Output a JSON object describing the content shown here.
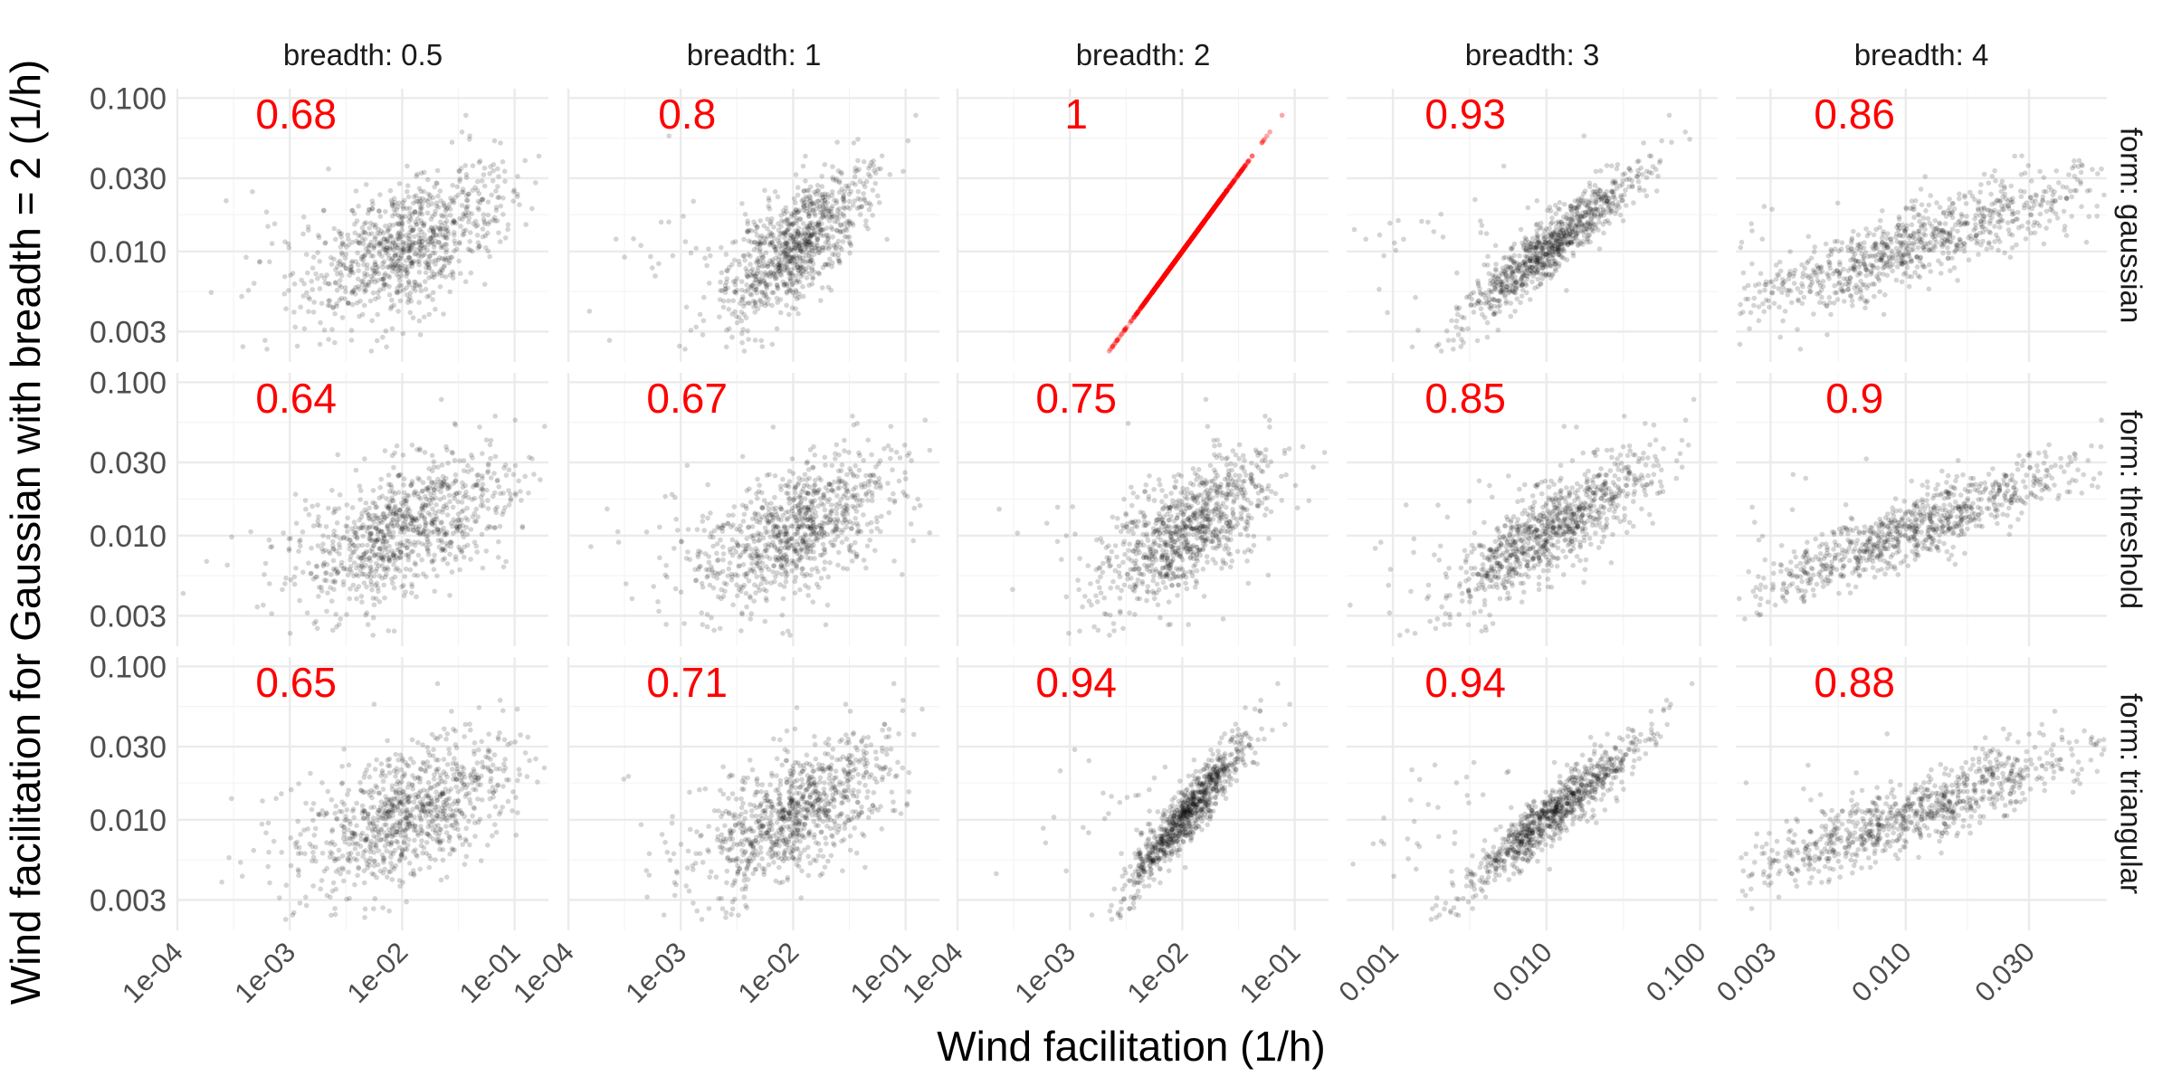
{
  "chart_data": {
    "type": "scatter",
    "facet_layout": "grid",
    "x_title": "Wind facilitation (1/h)",
    "y_title": "Wind facilitation for Gaussian with breadth = 2 (1/h)",
    "log_x": true,
    "log_y": true,
    "grid": true,
    "col_strips": [
      "breadth: 0.5",
      "breadth: 1",
      "breadth: 2",
      "breadth: 3",
      "breadth: 4"
    ],
    "row_strips": [
      "form: gaussian",
      "form: threshold",
      "form: triangular"
    ],
    "y_ticks": [
      "0.100",
      "0.030",
      "0.010",
      "0.003"
    ],
    "y_tick_values": [
      0.1,
      0.03,
      0.01,
      0.003
    ],
    "ylim": [
      0.0019,
      0.115
    ],
    "x_axes": [
      {
        "xlim": [
          0.0001,
          0.2
        ],
        "ticks": [
          "1e-04",
          "1e-03",
          "1e-02",
          "1e-01"
        ],
        "tick_values": [
          0.0001,
          0.001,
          0.01,
          0.1
        ]
      },
      {
        "xlim": [
          0.0001,
          0.2
        ],
        "ticks": [
          "1e-04",
          "1e-03",
          "1e-02",
          "1e-01"
        ],
        "tick_values": [
          0.0001,
          0.001,
          0.01,
          0.1
        ]
      },
      {
        "xlim": [
          0.0001,
          0.2
        ],
        "ticks": [
          "1e-04",
          "1e-03",
          "1e-02",
          "1e-01"
        ],
        "tick_values": [
          0.0001,
          0.001,
          0.01,
          0.1
        ]
      },
      {
        "xlim": [
          0.0005,
          0.13
        ],
        "ticks": [
          "0.001",
          "0.010",
          "0.100"
        ],
        "tick_values": [
          0.001,
          0.01,
          0.1
        ]
      },
      {
        "xlim": [
          0.0022,
          0.06
        ],
        "ticks": [
          "0.003",
          "0.010",
          "0.030"
        ],
        "tick_values": [
          0.003,
          0.01,
          0.03
        ]
      }
    ],
    "correlations": [
      [
        "0.68",
        "0.8",
        "1",
        "0.93",
        "0.86"
      ],
      [
        "0.64",
        "0.67",
        "0.75",
        "0.85",
        "0.9"
      ],
      [
        "0.65",
        "0.71",
        "0.94",
        "0.94",
        "0.88"
      ]
    ],
    "highlight_panel": {
      "row": 0,
      "col": 2
    },
    "n_points_per_panel": 900,
    "colors": {
      "points": "#000000",
      "highlight": "#ff0000",
      "correlation_text": "#ff0000",
      "grid": "#ebebeb"
    }
  }
}
